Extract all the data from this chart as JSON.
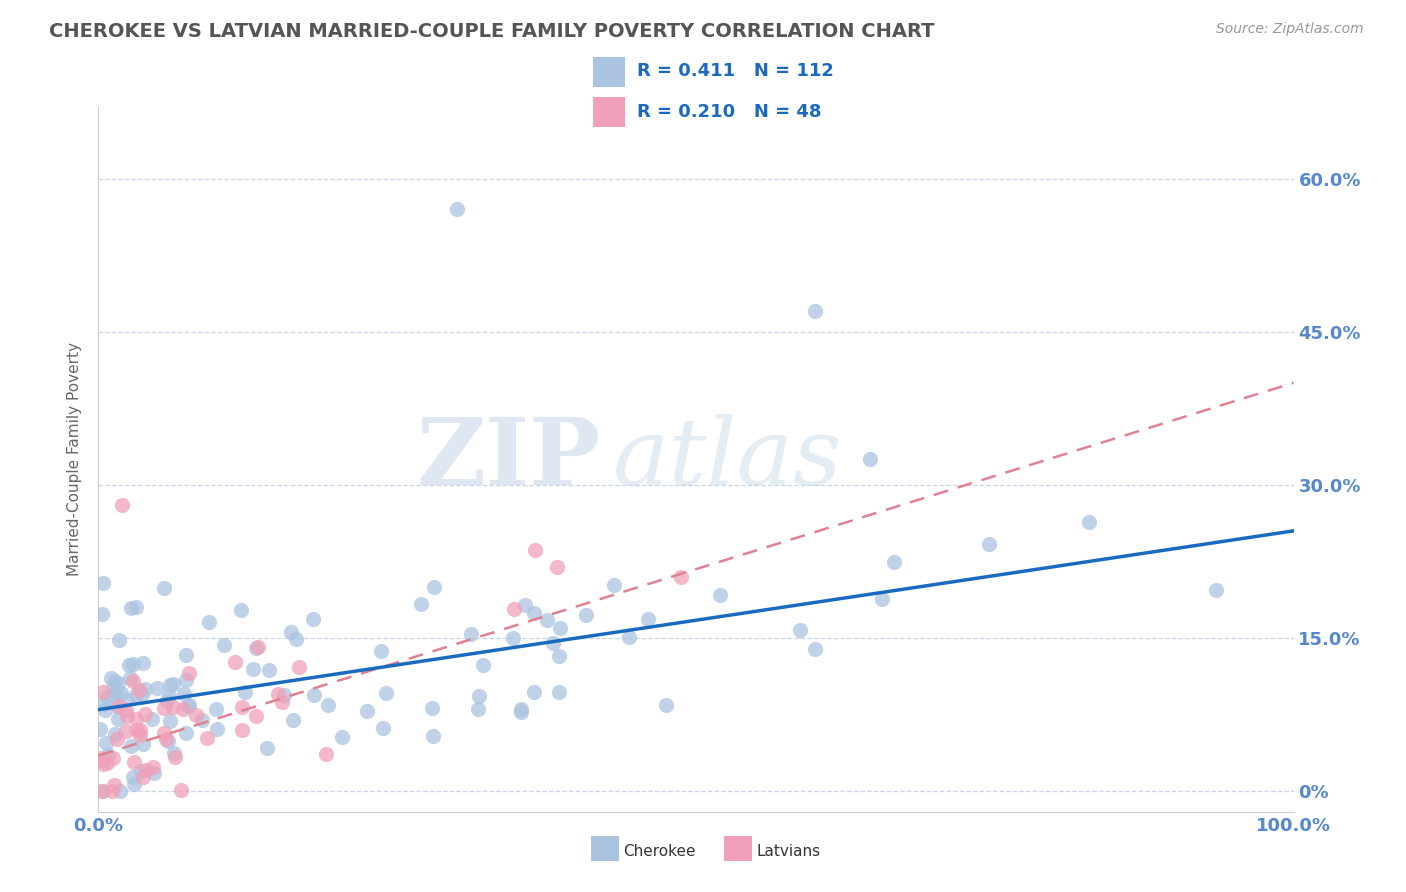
{
  "title": "CHEROKEE VS LATVIAN MARRIED-COUPLE FAMILY POVERTY CORRELATION CHART",
  "source_text": "Source: ZipAtlas.com",
  "ylabel": "Married-Couple Family Poverty",
  "watermark_zip": "ZIP",
  "watermark_atlas": "atlas",
  "xlim": [
    0,
    100
  ],
  "ylim": [
    -2,
    67
  ],
  "ytick_positions": [
    0,
    15,
    30,
    45,
    60
  ],
  "ytick_labels": [
    "0%",
    "15.0%",
    "30.0%",
    "45.0%",
    "60.0%"
  ],
  "cherokee_color": "#aac4e0",
  "latvian_color": "#f0a0b8",
  "cherokee_line_color": "#1a6bbf",
  "latvian_line_color": "#e08090",
  "cherokee_R": 0.411,
  "cherokee_N": 112,
  "latvian_R": 0.21,
  "latvian_N": 48,
  "grid_color": "#c8d4e8",
  "background_color": "#ffffff",
  "title_color": "#555555",
  "axis_label_color": "#666666",
  "tick_label_color": "#5588cc",
  "source_color": "#999999"
}
